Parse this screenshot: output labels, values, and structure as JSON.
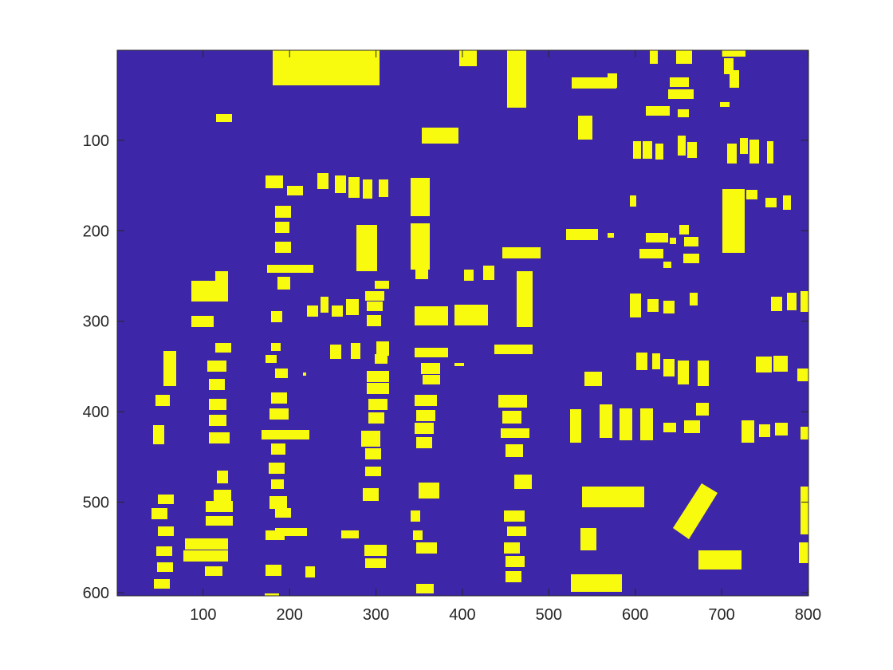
{
  "chart_data": {
    "type": "image",
    "xlim": [
      0.5,
      800.5
    ],
    "ylim": [
      0.5,
      603.5
    ],
    "ydir": "reverse",
    "xticks": [
      100,
      200,
      300,
      400,
      500,
      600,
      700,
      800
    ],
    "yticks": [
      100,
      200,
      300,
      400,
      500,
      600
    ],
    "colormap": [
      "#3e26a8",
      "#f9fb0e"
    ]
  }
}
